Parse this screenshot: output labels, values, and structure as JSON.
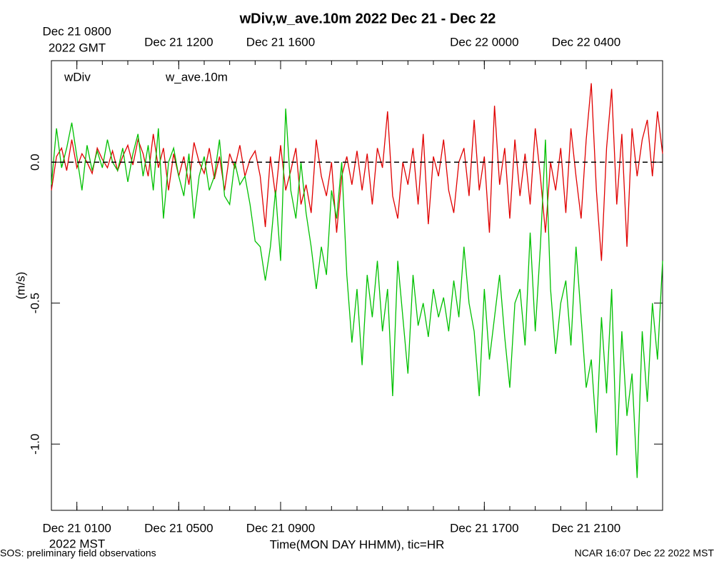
{
  "chart_data": {
    "type": "line",
    "title": "wDiv,w_ave.10m 2022 Dec 21 - Dec 22",
    "y_label": "(m/s)",
    "x_label": "Time(MON DAY HHMM), tic=HR",
    "x_unit_label": "2022 MST",
    "x2_unit_label": "2022 GMT",
    "footer_left": "SOS: preliminary field observations",
    "footer_right": "NCAR 16:07 Dec 22 2022 MST",
    "xlim": [
      0,
      24
    ],
    "ylim": [
      -1.235,
      0.36
    ],
    "yticks": [
      {
        "value": 0,
        "label": "0.0"
      },
      {
        "value": -0.5,
        "label": "-0.5"
      },
      {
        "value": -1,
        "label": "-1.0"
      }
    ],
    "xticks": [
      {
        "value": 1,
        "label": "Dec 21 0100"
      },
      {
        "value": 5,
        "label": "Dec 21 0500"
      },
      {
        "value": 9,
        "label": "Dec 21 0900"
      },
      {
        "value": 17,
        "label": "Dec 21 1700"
      },
      {
        "value": 21,
        "label": "Dec 21 2100"
      }
    ],
    "x2ticks": [
      {
        "value": 1,
        "label": "Dec 21 0800"
      },
      {
        "value": 5,
        "label": "Dec 21 1200"
      },
      {
        "value": 9,
        "label": "Dec 21 1600"
      },
      {
        "value": 17,
        "label": "Dec 22 0000"
      },
      {
        "value": 21,
        "label": "Dec 22 0400"
      }
    ],
    "x_minor_ticks": [
      0,
      1,
      2,
      3,
      4,
      5,
      6,
      7,
      8,
      9,
      10,
      11,
      12,
      13,
      14,
      15,
      16,
      17,
      18,
      19,
      20,
      21,
      22,
      23,
      24
    ],
    "reference_line": 0,
    "x": [
      0,
      0.2,
      0.4,
      0.6,
      0.8,
      1,
      1.2,
      1.4,
      1.6,
      1.8,
      2,
      2.2,
      2.4,
      2.6,
      2.8,
      3,
      3.2,
      3.4,
      3.6,
      3.8,
      4,
      4.2,
      4.4,
      4.6,
      4.8,
      5,
      5.2,
      5.4,
      5.6,
      5.8,
      6,
      6.2,
      6.4,
      6.6,
      6.8,
      7,
      7.2,
      7.4,
      7.6,
      7.8,
      8,
      8.2,
      8.4,
      8.6,
      8.8,
      9,
      9.2,
      9.4,
      9.6,
      9.8,
      10,
      10.2,
      10.4,
      10.6,
      10.8,
      11,
      11.2,
      11.4,
      11.6,
      11.8,
      12,
      12.2,
      12.4,
      12.6,
      12.8,
      13,
      13.2,
      13.4,
      13.6,
      13.8,
      14,
      14.2,
      14.4,
      14.6,
      14.8,
      15,
      15.2,
      15.4,
      15.6,
      15.8,
      16,
      16.2,
      16.4,
      16.6,
      16.8,
      17,
      17.2,
      17.4,
      17.6,
      17.8,
      18,
      18.2,
      18.4,
      18.6,
      18.8,
      19,
      19.2,
      19.4,
      19.6,
      19.8,
      20,
      20.2,
      20.4,
      20.6,
      20.8,
      21,
      21.2,
      21.4,
      21.6,
      21.8,
      22,
      22.2,
      22.4,
      22.6,
      22.8,
      23,
      23.2,
      23.4,
      23.6,
      23.8,
      24
    ],
    "series": [
      {
        "name": "wDiv",
        "color": "#e00000",
        "values": [
          -0.1,
          0.02,
          0.05,
          -0.03,
          0.08,
          -0.02,
          0.03,
          0.0,
          -0.04,
          0.05,
          0.01,
          -0.02,
          0.04,
          -0.03,
          0.02,
          0.06,
          -0.01,
          0.08,
          0.03,
          -0.05,
          0.1,
          -0.02,
          0.05,
          -0.1,
          0.03,
          -0.05,
          0.02,
          -0.08,
          0.07,
          0.0,
          -0.04,
          0.05,
          -0.06,
          0.02,
          -0.1,
          0.03,
          -0.02,
          0.06,
          -0.05,
          0.01,
          0.04,
          -0.05,
          -0.23,
          0.02,
          -0.12,
          0.06,
          -0.1,
          -0.03,
          0.05,
          -0.15,
          -0.08,
          -0.18,
          0.08,
          -0.05,
          -0.12,
          0.0,
          -0.25,
          -0.05,
          0.02,
          -0.08,
          0.04,
          -0.1,
          0.03,
          -0.15,
          0.05,
          -0.02,
          0.18,
          -0.12,
          -0.2,
          0.0,
          -0.08,
          0.05,
          -0.15,
          0.1,
          -0.22,
          0.02,
          -0.05,
          0.08,
          -0.1,
          -0.18,
          0.0,
          0.05,
          -0.12,
          0.15,
          -0.1,
          0.02,
          -0.25,
          0.2,
          -0.08,
          0.05,
          -0.2,
          0.08,
          -0.12,
          0.03,
          -0.15,
          0.12,
          -0.05,
          -0.25,
          0.0,
          -0.1,
          0.05,
          -0.18,
          0.12,
          -0.05,
          -0.2,
          0.08,
          0.28,
          -0.1,
          -0.35,
          0.05,
          0.26,
          -0.15,
          0.1,
          -0.3,
          0.12,
          -0.05,
          0.08,
          0.15,
          -0.05,
          0.18,
          0.03
        ]
      },
      {
        "name": "w_ave.10m",
        "color": "#00c000",
        "values": [
          -0.08,
          0.12,
          -0.02,
          0.05,
          0.14,
          0.02,
          -0.1,
          0.06,
          -0.03,
          0.04,
          -0.02,
          0.08,
          0.0,
          -0.03,
          0.05,
          -0.07,
          0.03,
          0.1,
          -0.05,
          0.06,
          -0.1,
          0.12,
          -0.2,
          0.0,
          0.05,
          -0.05,
          -0.12,
          0.03,
          -0.2,
          -0.05,
          0.02,
          -0.1,
          -0.05,
          0.08,
          -0.12,
          -0.15,
          0.0,
          -0.08,
          -0.05,
          -0.15,
          -0.28,
          -0.3,
          -0.42,
          -0.3,
          -0.1,
          -0.35,
          0.19,
          -0.1,
          -0.2,
          0.0,
          -0.18,
          -0.3,
          -0.45,
          -0.3,
          -0.4,
          -0.1,
          -0.2,
          0.0,
          -0.4,
          -0.64,
          -0.45,
          -0.72,
          -0.4,
          -0.55,
          -0.35,
          -0.6,
          -0.45,
          -0.83,
          -0.35,
          -0.55,
          -0.75,
          -0.4,
          -0.58,
          -0.5,
          -0.62,
          -0.45,
          -0.55,
          -0.48,
          -0.6,
          -0.42,
          -0.55,
          -0.3,
          -0.5,
          -0.6,
          -0.83,
          -0.45,
          -0.7,
          -0.55,
          -0.4,
          -0.62,
          -0.8,
          -0.5,
          -0.45,
          -0.65,
          -0.25,
          -0.6,
          -0.3,
          0.08,
          -0.45,
          -0.68,
          -0.5,
          -0.42,
          -0.65,
          -0.3,
          -0.55,
          -0.8,
          -0.7,
          -0.96,
          -0.55,
          -0.82,
          -0.45,
          -1.04,
          -0.6,
          -0.9,
          -0.75,
          -1.12,
          -0.6,
          -0.85,
          -0.5,
          -0.7,
          -0.35
        ]
      }
    ]
  }
}
